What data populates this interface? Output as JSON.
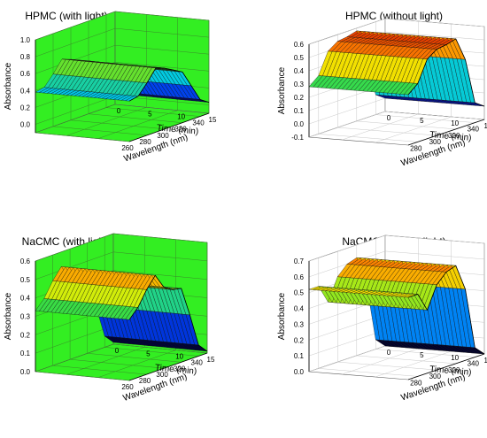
{
  "chart_data": [
    {
      "type": "surface3d",
      "title": "HPMC (with light)",
      "xlabel": "Wavelength (nm)",
      "ylabel": "Time (min)",
      "zlabel": "Absorbance",
      "x_ticks": [
        "260",
        "280",
        "300",
        "320",
        "340"
      ],
      "y_ticks": [
        "0",
        "5",
        "10",
        "15"
      ],
      "z_ticks": [
        "0.0",
        "0.2",
        "0.4",
        "0.6",
        "0.8",
        "1.0"
      ],
      "xlim": [
        260,
        350
      ],
      "ylim": [
        0,
        15
      ],
      "zlim": [
        -0.1,
        1.0
      ],
      "background": "#33ee22",
      "wavelength": [
        260,
        270,
        280,
        290,
        300,
        310,
        320,
        330,
        340,
        350
      ],
      "absorbance": [
        0.38,
        0.4,
        0.52,
        0.66,
        0.62,
        0.56,
        0.5,
        0.3,
        0.1,
        0.03
      ]
    },
    {
      "type": "surface3d",
      "title": "HPMC (without light)",
      "xlabel": "Wavelength (nm)",
      "ylabel": "Time (min)",
      "zlabel": "Absorbance",
      "x_ticks": [
        "280",
        "300",
        "320",
        "340"
      ],
      "y_ticks": [
        "0",
        "5",
        "10",
        "15"
      ],
      "z_ticks": [
        "-0.1",
        "0.0",
        "0.1",
        "0.2",
        "0.3",
        "0.4",
        "0.5",
        "0.6"
      ],
      "xlim": [
        270,
        350
      ],
      "ylim": [
        0,
        15
      ],
      "zlim": [
        -0.1,
        0.6
      ],
      "background": "#ffffff",
      "wavelength": [
        270,
        280,
        290,
        300,
        310,
        320,
        330,
        340,
        350
      ],
      "absorbance": [
        0.28,
        0.34,
        0.5,
        0.55,
        0.56,
        0.58,
        0.4,
        0.05,
        0.0
      ]
    },
    {
      "type": "surface3d",
      "title": "NaCMC (with light)",
      "xlabel": "Wavelength (nm)",
      "ylabel": "Time (min)",
      "zlabel": "Absorbance",
      "x_ticks": [
        "260",
        "280",
        "300",
        "320",
        "340"
      ],
      "y_ticks": [
        "0",
        "5",
        "10",
        "15"
      ],
      "z_ticks": [
        "0.0",
        "0.1",
        "0.2",
        "0.3",
        "0.4",
        "0.5",
        "0.6"
      ],
      "xlim": [
        260,
        350
      ],
      "ylim": [
        0,
        15
      ],
      "zlim": [
        0,
        0.6
      ],
      "background": "#33ee22",
      "wavelength": [
        260,
        270,
        280,
        290,
        300,
        310,
        320,
        330,
        340,
        350
      ],
      "absorbance": [
        0.33,
        0.38,
        0.46,
        0.52,
        0.44,
        0.41,
        0.4,
        0.24,
        0.06,
        0.01
      ]
    },
    {
      "type": "surface3d",
      "title": "NaCMC (without light)",
      "xlabel": "Wavelength (nm)",
      "ylabel": "Time (min)",
      "zlabel": "Absorbance",
      "x_ticks": [
        "280",
        "300",
        "320",
        "340"
      ],
      "y_ticks": [
        "0",
        "5",
        "10",
        "15"
      ],
      "z_ticks": [
        "0.0",
        "0.1",
        "0.2",
        "0.3",
        "0.4",
        "0.5",
        "0.6",
        "0.7"
      ],
      "xlim": [
        270,
        350
      ],
      "ylim": [
        0,
        15
      ],
      "zlim": [
        0,
        0.7
      ],
      "background": "#ffffff",
      "wavelength": [
        270,
        280,
        290,
        300,
        310,
        320,
        330,
        340,
        350
      ],
      "absorbance": [
        0.52,
        0.52,
        0.4,
        0.54,
        0.6,
        0.62,
        0.45,
        0.06,
        0.0
      ]
    }
  ]
}
